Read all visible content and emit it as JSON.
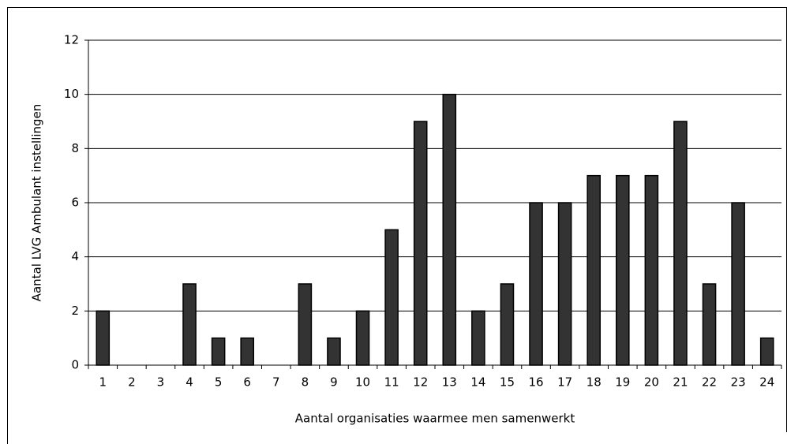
{
  "chart_data": {
    "type": "bar",
    "categories": [
      "1",
      "2",
      "3",
      "4",
      "5",
      "6",
      "7",
      "8",
      "9",
      "10",
      "11",
      "12",
      "13",
      "14",
      "15",
      "16",
      "17",
      "18",
      "19",
      "20",
      "21",
      "22",
      "23",
      "24"
    ],
    "values": [
      2,
      0,
      0,
      3,
      1,
      1,
      0,
      3,
      1,
      2,
      5,
      9,
      10,
      2,
      3,
      6,
      6,
      7,
      7,
      7,
      9,
      3,
      6,
      1
    ],
    "color": "#333333",
    "ylim": [
      0,
      12
    ],
    "yticks": [
      0,
      2,
      4,
      6,
      8,
      10,
      12
    ],
    "grid": true,
    "xlabel": "Aantal organisaties waarmee men samenwerkt",
    "ylabel": "Aantal LVG Ambulant instellingen"
  }
}
